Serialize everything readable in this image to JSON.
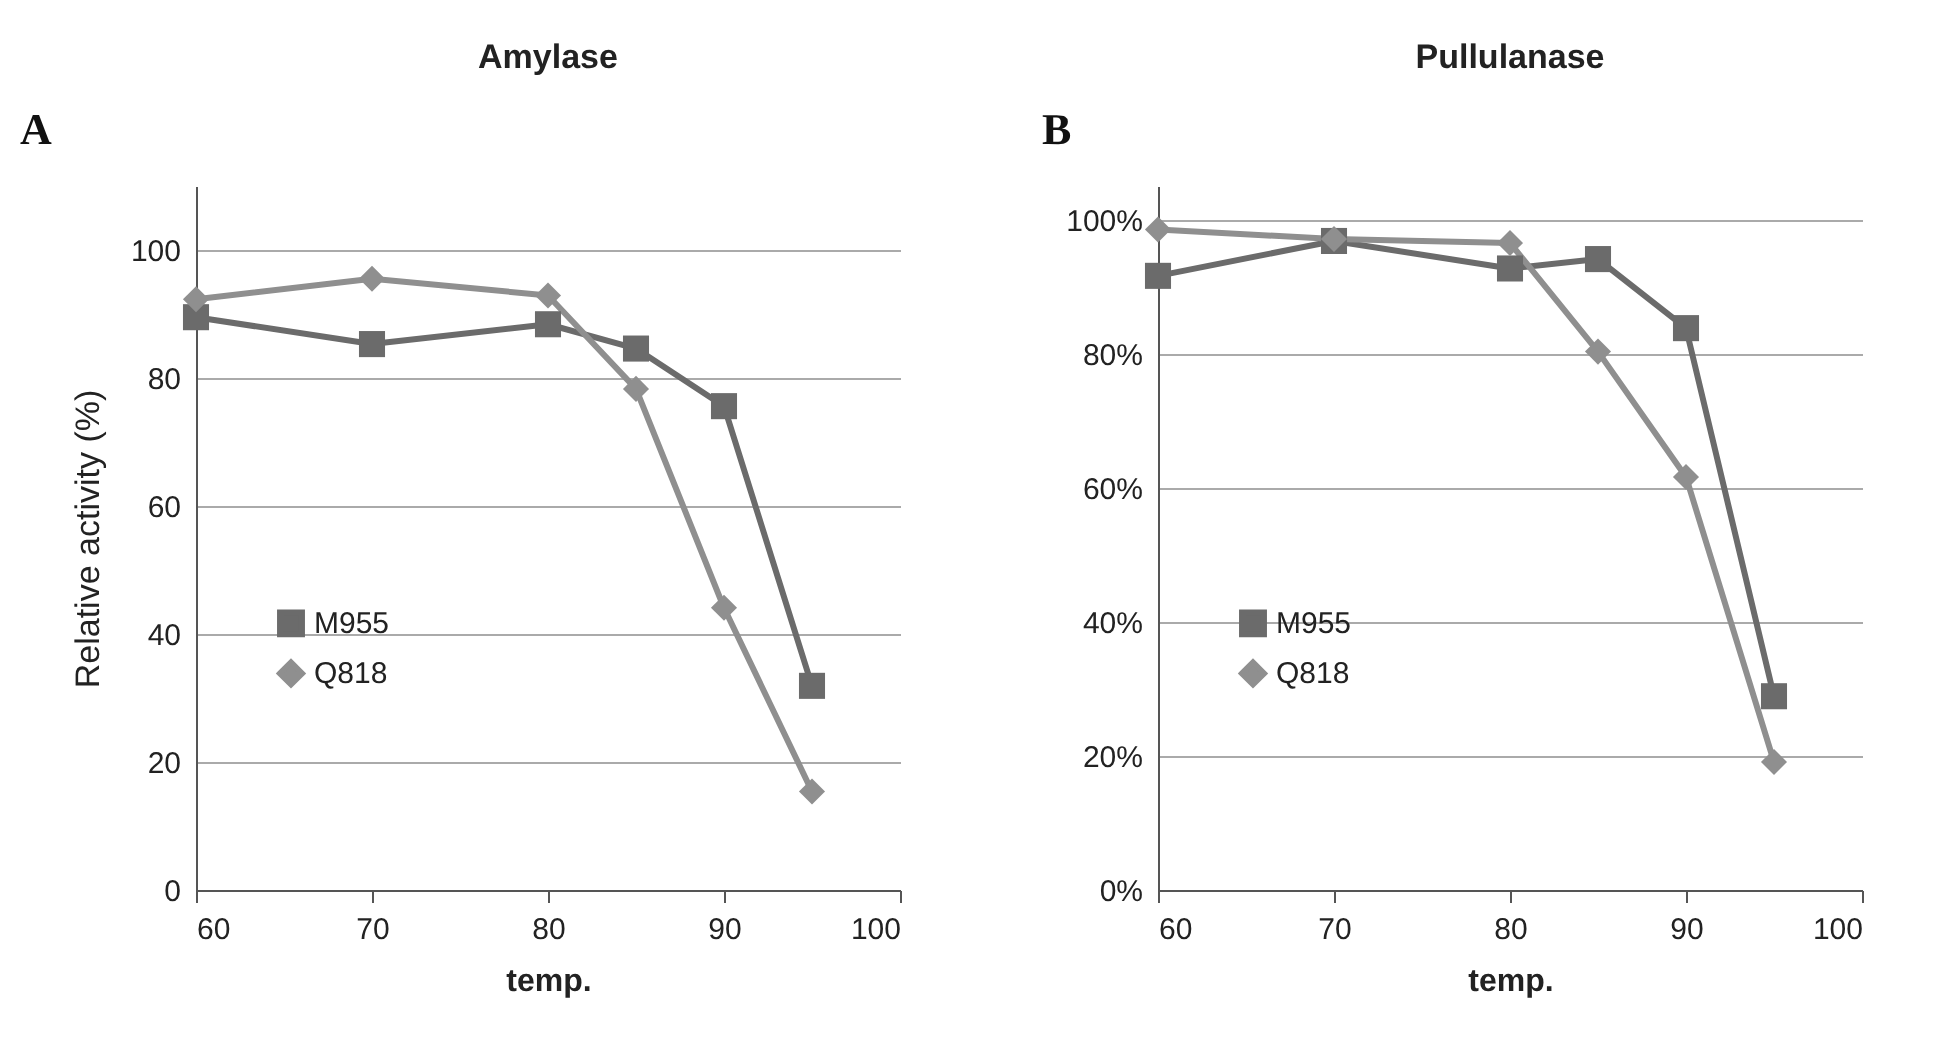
{
  "chart_data": [
    {
      "type": "line",
      "title": "Amylase",
      "xlabel": "temp.",
      "ylabel": "Relative activity (%)",
      "annotations": [
        "A"
      ],
      "x": [
        60,
        70,
        80,
        85,
        90,
        95
      ],
      "series": [
        {
          "name": "M955",
          "color": "#6b6b6b",
          "marker": "square",
          "values": [
            89.5,
            85.3,
            88.4,
            84.6,
            75.6,
            31.9
          ]
        },
        {
          "name": "Q818",
          "color": "#8f8f8f",
          "marker": "diamond",
          "values": [
            92.3,
            95.5,
            92.9,
            78.3,
            44.1,
            15.4
          ]
        }
      ],
      "xlim": [
        60,
        100
      ],
      "xticks": [
        60,
        70,
        80,
        90,
        100
      ],
      "ylim": [
        0,
        110
      ],
      "yticks": [
        0,
        20,
        40,
        60,
        80,
        100
      ],
      "grid": "y",
      "legend": "left",
      "line_style": "solid"
    },
    {
      "type": "line",
      "title": "Pullulanase",
      "xlabel": "temp.",
      "annotations": [
        "B"
      ],
      "x": [
        60,
        70,
        80,
        85,
        90,
        95
      ],
      "series": [
        {
          "name": "M955",
          "color": "#6b6b6b",
          "marker": "square",
          "values": [
            91.6,
            96.8,
            92.7,
            94.1,
            83.8,
            28.9
          ]
        },
        {
          "name": "Q818",
          "color": "#8f8f8f",
          "marker": "diamond",
          "values": [
            98.5,
            97.1,
            96.5,
            80.3,
            61.6,
            19.1
          ]
        }
      ],
      "xlim": [
        60,
        100
      ],
      "xticks": [
        60,
        70,
        80,
        90,
        100
      ],
      "ylim": [
        0,
        105
      ],
      "yticks": [
        {
          "value": 0,
          "label": "0%"
        },
        {
          "value": 20,
          "label": "20%"
        },
        {
          "value": 40,
          "label": "40%"
        },
        {
          "value": 60,
          "label": "60%"
        },
        {
          "value": 80,
          "label": "80%"
        },
        {
          "value": 100,
          "label": "100%"
        }
      ],
      "grid": "y",
      "legend": "left",
      "line_style": "solid"
    }
  ]
}
